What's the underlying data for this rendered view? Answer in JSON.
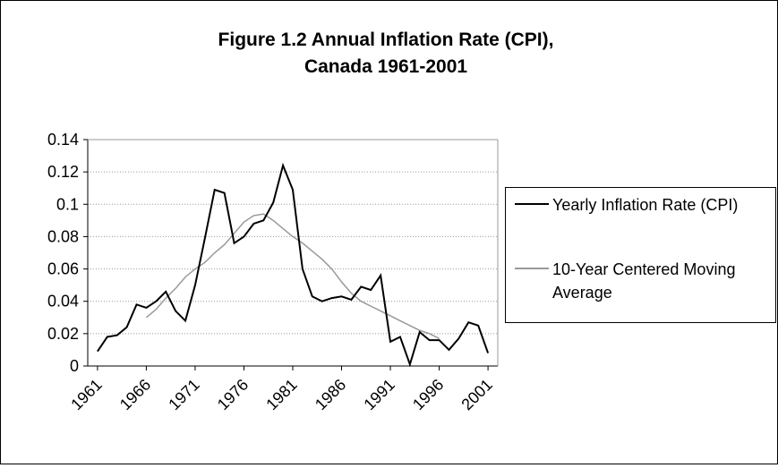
{
  "chart_data": {
    "type": "line",
    "title": [
      "Figure 1.2 Annual Inflation Rate (CPI),",
      "Canada 1961-2001"
    ],
    "x": [
      1961,
      1962,
      1963,
      1964,
      1965,
      1966,
      1967,
      1968,
      1969,
      1970,
      1971,
      1972,
      1973,
      1974,
      1975,
      1976,
      1977,
      1978,
      1979,
      1980,
      1981,
      1982,
      1983,
      1984,
      1985,
      1986,
      1987,
      1988,
      1989,
      1990,
      1991,
      1992,
      1993,
      1994,
      1995,
      1996,
      1997,
      1998,
      1999,
      2000,
      2001
    ],
    "series": [
      {
        "name": "Yearly Inflation Rate (CPI)",
        "color": "#000000",
        "values": [
          0.009,
          0.018,
          0.019,
          0.024,
          0.038,
          0.036,
          0.04,
          0.046,
          0.034,
          0.028,
          0.05,
          0.079,
          0.109,
          0.107,
          0.076,
          0.08,
          0.088,
          0.09,
          0.101,
          0.124,
          0.109,
          0.06,
          0.043,
          0.04,
          0.042,
          0.043,
          0.041,
          0.049,
          0.047,
          0.056,
          0.015,
          0.018,
          0.001,
          0.021,
          0.016,
          0.016,
          0.01,
          0.017,
          0.027,
          0.025,
          0.008
        ]
      },
      {
        "name": "10-Year Centered Moving Average",
        "color": "#999999",
        "values": [
          null,
          null,
          null,
          null,
          null,
          0.03,
          0.035,
          0.042,
          0.048,
          0.055,
          0.06,
          0.064,
          0.07,
          0.075,
          0.082,
          0.089,
          0.093,
          0.094,
          0.09,
          0.085,
          0.08,
          0.076,
          0.071,
          0.066,
          0.06,
          0.052,
          0.045,
          0.04,
          0.037,
          0.034,
          0.031,
          0.028,
          0.025,
          0.022,
          0.02,
          0.017,
          null,
          null,
          null,
          null,
          null
        ]
      }
    ],
    "xlim": [
      1960,
      2002
    ],
    "xticks": [
      1961,
      1966,
      1971,
      1976,
      1981,
      1986,
      1991,
      1996,
      2001
    ],
    "ylim": [
      0,
      0.14
    ],
    "yticks": [
      0,
      0.02,
      0.04,
      0.06,
      0.08,
      0.1,
      0.12,
      0.14
    ],
    "grid": true
  }
}
